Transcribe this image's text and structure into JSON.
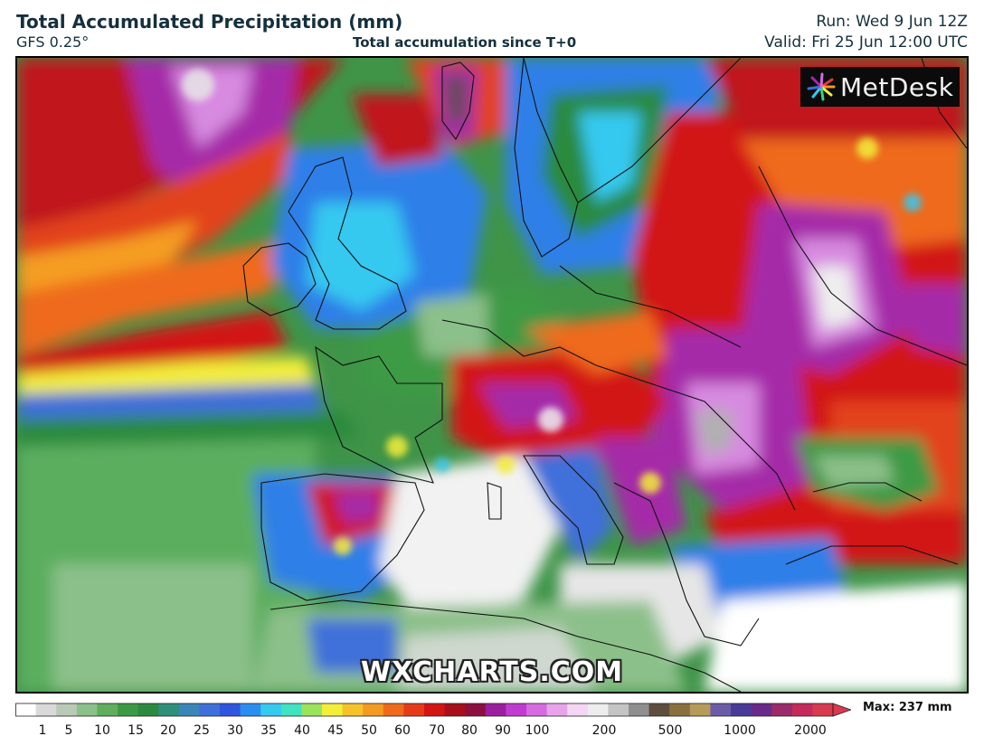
{
  "header": {
    "title": "Total Accumulated Precipitation (mm)",
    "model": "GFS 0.25°",
    "subtitle": "Total accumulation since T+0",
    "run": "Run: Wed 9 Jun 12Z",
    "valid": "Valid: Fri 25 Jun 12:00 UTC"
  },
  "logo": {
    "text": "MetDesk"
  },
  "watermark": {
    "text": "WXCHARTS.COM"
  },
  "colorbar": {
    "max_label": "Max: 237 mm",
    "tick_labels": [
      "1",
      "5",
      "10",
      "15",
      "20",
      "25",
      "30",
      "35",
      "40",
      "45",
      "50",
      "60",
      "70",
      "80",
      "90",
      "100",
      "200",
      "500",
      "1000",
      "2000"
    ],
    "colors": [
      "#ffffff",
      "#d9d9d9",
      "#b9c9b5",
      "#8cc08a",
      "#5fae5d",
      "#3c9a45",
      "#2c8a3e",
      "#2e8f7a",
      "#3a86b6",
      "#3f6fd9",
      "#3056e0",
      "#2a8ef0",
      "#35c9f0",
      "#3fe3c0",
      "#9be35a",
      "#f3ee3a",
      "#f5c22a",
      "#f39a22",
      "#ef6a1c",
      "#e53b1a",
      "#d21414",
      "#a80f1a",
      "#8b1040",
      "#9c1ea0",
      "#c13bd0",
      "#d66ae0",
      "#e6a3ea",
      "#f2d6f2",
      "#ededed",
      "#c4c4c4",
      "#8f8f8f",
      "#5d4e3e",
      "#8a6f3f",
      "#b59b5a",
      "#6c5ca8",
      "#4a3a98",
      "#6a2a8a",
      "#9a2a6a",
      "#c42a5a",
      "#d83a50"
    ]
  }
}
